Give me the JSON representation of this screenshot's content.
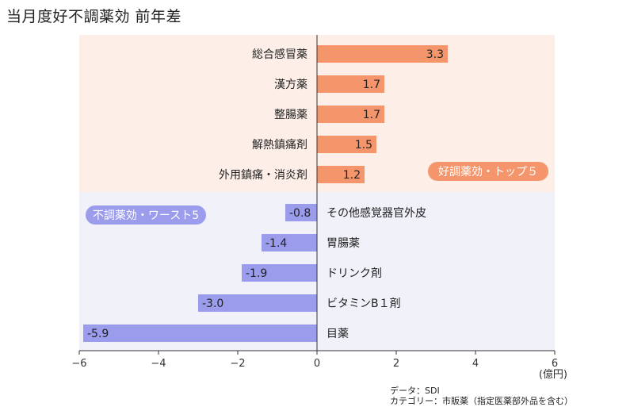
{
  "title": "当月度好不調薬効 前年差",
  "notes": {
    "source": "データ：SDI",
    "category": "カテゴリー：市販薬（指定医薬部外品を含む）"
  },
  "colors": {
    "top_bar": "#f5956c",
    "top_bg": "#fdefe8",
    "top_badge": "#f5956c",
    "bottom_bar": "#9b9cec",
    "bottom_bg": "#f0f1f9",
    "bottom_badge": "#9b9cec",
    "axis": "#333333"
  },
  "chart_data": {
    "type": "bar",
    "orientation": "horizontal",
    "unit": "(億円)",
    "xlim": [
      -6,
      6
    ],
    "xticks": [
      "−6",
      "−4",
      "−2",
      "0",
      "2",
      "4",
      "6"
    ],
    "groups": [
      {
        "name": "好調薬効・トップ５",
        "categories": [
          "総合感冒薬",
          "漢方薬",
          "整腸薬",
          "解熱鎮痛剤",
          "外用鎮痛・消炎剤"
        ],
        "values": [
          3.3,
          1.7,
          1.7,
          1.5,
          1.2
        ],
        "labels": [
          "3.3",
          "1.7",
          "1.7",
          "1.5",
          "1.2"
        ]
      },
      {
        "name": "不調薬効・ワースト5",
        "categories": [
          "その他感覚器官外皮",
          "胃腸薬",
          "ドリンク剤",
          "ビタミンB１剤",
          "目薬"
        ],
        "values": [
          -0.8,
          -1.4,
          -1.9,
          -3.0,
          -5.9
        ],
        "labels": [
          "-0.8",
          "-1.4",
          "-1.9",
          "-3.0",
          "-5.9"
        ]
      }
    ]
  }
}
